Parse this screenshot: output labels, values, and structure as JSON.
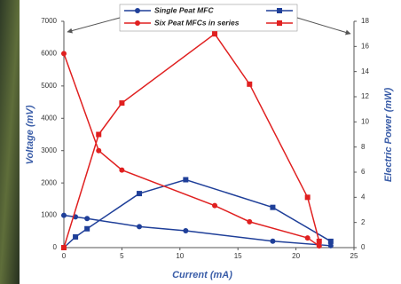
{
  "chart_data": {
    "type": "line",
    "xlabel": "Current (mA)",
    "ylabel": "Voltage (mV)",
    "y2label": "Electric Power (mW)",
    "xlim": [
      0,
      25
    ],
    "xticks": [
      0,
      5,
      10,
      15,
      20,
      25
    ],
    "ylim": [
      0,
      7000
    ],
    "yticks": [
      0,
      1000,
      2000,
      3000,
      4000,
      5000,
      6000,
      7000
    ],
    "y2lim": [
      0,
      18
    ],
    "y2ticks": [
      0,
      2,
      4,
      6,
      8,
      10,
      12,
      14,
      16,
      18
    ],
    "series": [
      {
        "name": "Single Peat MFC",
        "color": "#1f3f99",
        "x": [
          0,
          1,
          2,
          6.5,
          10.5,
          18,
          23
        ],
        "values": [
          1000,
          950,
          900,
          650,
          520,
          200,
          60
        ],
        "y2_values": [
          0,
          0.85,
          1.5,
          4.3,
          5.4,
          3.2,
          0.5
        ]
      },
      {
        "name": "Six Peat MFCs in series",
        "color": "#e02020",
        "x": [
          0,
          3,
          5,
          13,
          16,
          21,
          22
        ],
        "values": [
          6000,
          3000,
          2400,
          1300,
          800,
          300,
          50
        ],
        "y2_values": [
          0,
          9,
          11.5,
          17,
          13,
          4,
          0.5
        ]
      }
    ]
  }
}
